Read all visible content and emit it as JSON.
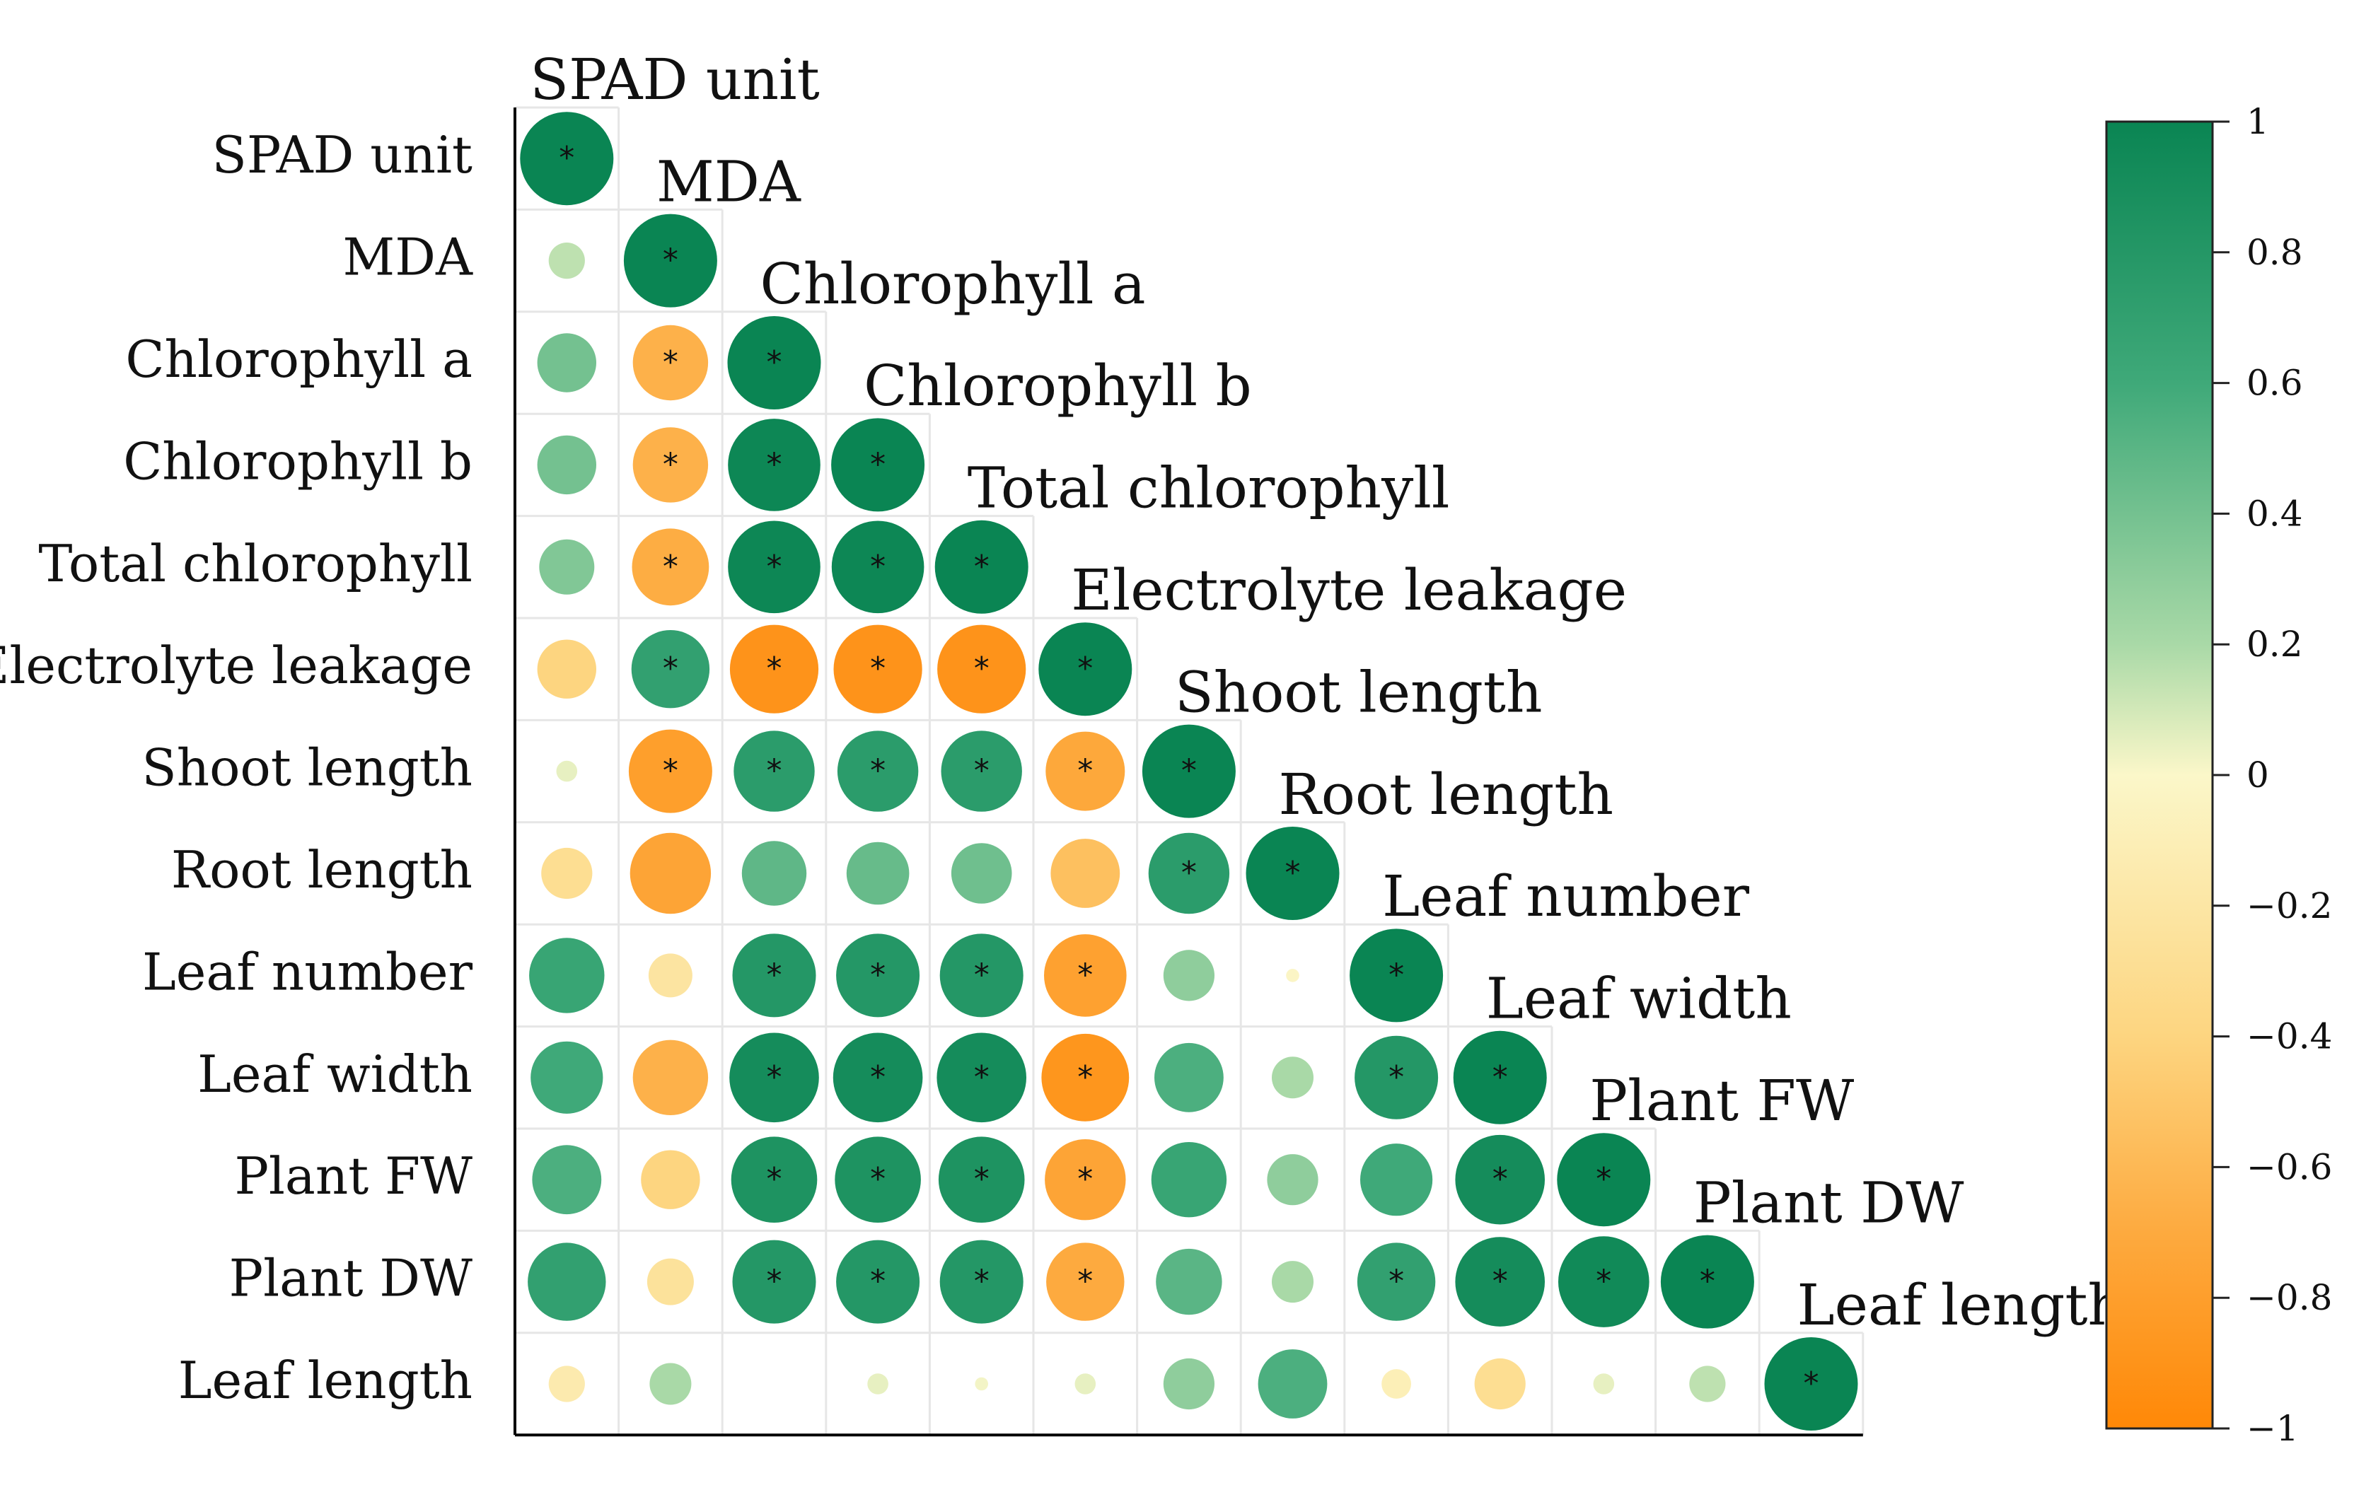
{
  "chart_data": {
    "type": "heatmap",
    "subtype": "correlation-circle-matrix (lower triangle)",
    "variables": [
      "SPAD unit",
      "MDA",
      "Chlorophyll a",
      "Chlorophyll b",
      "Total chlorophyll",
      "Electrolyte leakage",
      "Shoot length",
      "Root length",
      "Leaf number",
      "Leaf width",
      "Plant FW",
      "Plant DW",
      "Leaf length"
    ],
    "values": [
      [
        1
      ],
      [
        0.15,
        1
      ],
      [
        0.4,
        -0.65,
        1
      ],
      [
        0.4,
        -0.65,
        0.98,
        1
      ],
      [
        0.35,
        -0.68,
        0.98,
        0.98,
        1
      ],
      [
        -0.4,
        0.7,
        -0.9,
        -0.9,
        -0.9,
        1
      ],
      [
        0.05,
        -0.8,
        0.75,
        0.75,
        0.75,
        -0.72,
        1
      ],
      [
        -0.3,
        -0.75,
        0.48,
        0.45,
        0.42,
        -0.55,
        0.75,
        1
      ],
      [
        0.65,
        -0.22,
        0.8,
        0.8,
        0.8,
        -0.78,
        0.3,
        -0.02,
        1
      ],
      [
        0.6,
        -0.65,
        0.92,
        0.92,
        0.92,
        -0.88,
        0.55,
        0.2,
        0.8,
        1
      ],
      [
        0.55,
        -0.4,
        0.85,
        0.85,
        0.85,
        -0.75,
        0.65,
        0.3,
        0.6,
        0.92,
        1
      ],
      [
        0.7,
        -0.25,
        0.8,
        0.8,
        0.8,
        -0.7,
        0.5,
        0.2,
        0.7,
        0.92,
        0.95,
        1
      ],
      [
        -0.15,
        0.2,
        0,
        0.05,
        0.02,
        0.05,
        0.3,
        0.55,
        -0.1,
        -0.3,
        0.05,
        0.15,
        1
      ]
    ],
    "significant": [
      [
        true
      ],
      [
        false,
        true
      ],
      [
        false,
        true,
        true
      ],
      [
        false,
        true,
        true,
        true
      ],
      [
        false,
        true,
        true,
        true,
        true
      ],
      [
        false,
        true,
        true,
        true,
        true,
        true
      ],
      [
        false,
        true,
        true,
        true,
        true,
        true,
        true
      ],
      [
        false,
        false,
        false,
        false,
        false,
        false,
        true,
        true
      ],
      [
        false,
        false,
        true,
        true,
        true,
        true,
        false,
        false,
        true
      ],
      [
        false,
        false,
        true,
        true,
        true,
        true,
        false,
        false,
        true,
        true
      ],
      [
        false,
        false,
        true,
        true,
        true,
        true,
        false,
        false,
        false,
        true,
        true
      ],
      [
        false,
        false,
        true,
        true,
        true,
        true,
        false,
        false,
        true,
        true,
        true,
        true
      ],
      [
        false,
        false,
        false,
        false,
        false,
        false,
        false,
        false,
        false,
        false,
        false,
        false,
        true
      ]
    ],
    "significance_marker": "*",
    "colorbar": {
      "range": [
        -1,
        1
      ],
      "ticks": [
        "1",
        "0.8",
        "0.6",
        "0.4",
        "0.2",
        "0",
        "−0.2",
        "−0.4",
        "−0.6",
        "−0.8",
        "−1"
      ],
      "tick_values": [
        1,
        0.8,
        0.6,
        0.4,
        0.2,
        0,
        -0.2,
        -0.4,
        -0.6,
        -0.8,
        -1
      ]
    },
    "colors": {
      "positive": "#0a8553",
      "zero": "#fbf7c9",
      "negative": "#ff8807",
      "grid": "#e6e6e6",
      "axis": "#000000"
    }
  }
}
